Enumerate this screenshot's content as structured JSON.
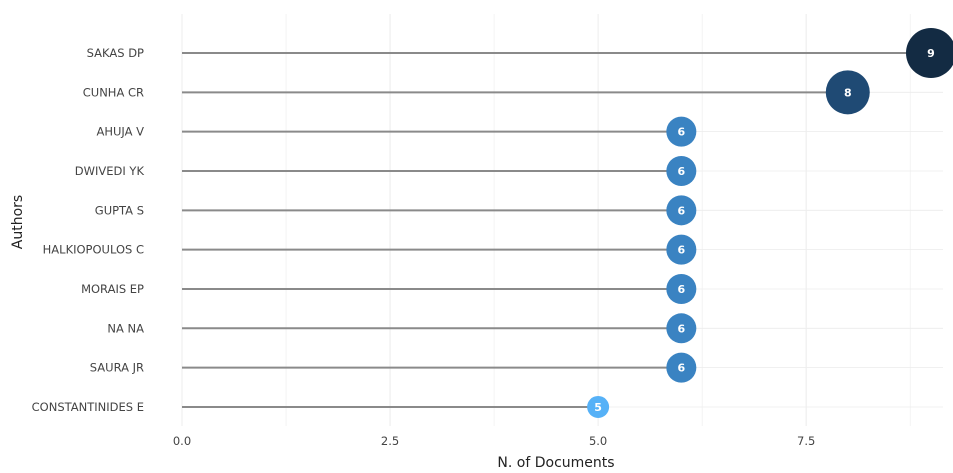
{
  "chart_data": {
    "type": "lollipop",
    "xlabel": "N. of Documents",
    "ylabel": "Authors",
    "xlim": [
      0,
      9
    ],
    "xticks": [
      0.0,
      2.5,
      5.0,
      7.5
    ],
    "xtick_labels": [
      "0.0",
      "2.5",
      "5.0",
      "7.5"
    ],
    "grid": true,
    "categories": [
      "SAKAS DP",
      "CUNHA CR",
      "AHUJA V",
      "DWIVEDI YK",
      "GUPTA S",
      "HALKIOPOULOS C",
      "MORAIS EP",
      "NA NA",
      "SAURA JR",
      "CONSTANTINIDES E"
    ],
    "values": [
      9,
      8,
      6,
      6,
      6,
      6,
      6,
      6,
      6,
      5
    ],
    "value_labels": [
      "9",
      "8",
      "6",
      "6",
      "6",
      "6",
      "6",
      "6",
      "6",
      "5"
    ],
    "colors": {
      "9": "#132b43",
      "8": "#1f4a74",
      "6": "#3a83c2",
      "5": "#56b1f7",
      "stem": "#8a8a8a",
      "grid": "#ececec"
    }
  }
}
